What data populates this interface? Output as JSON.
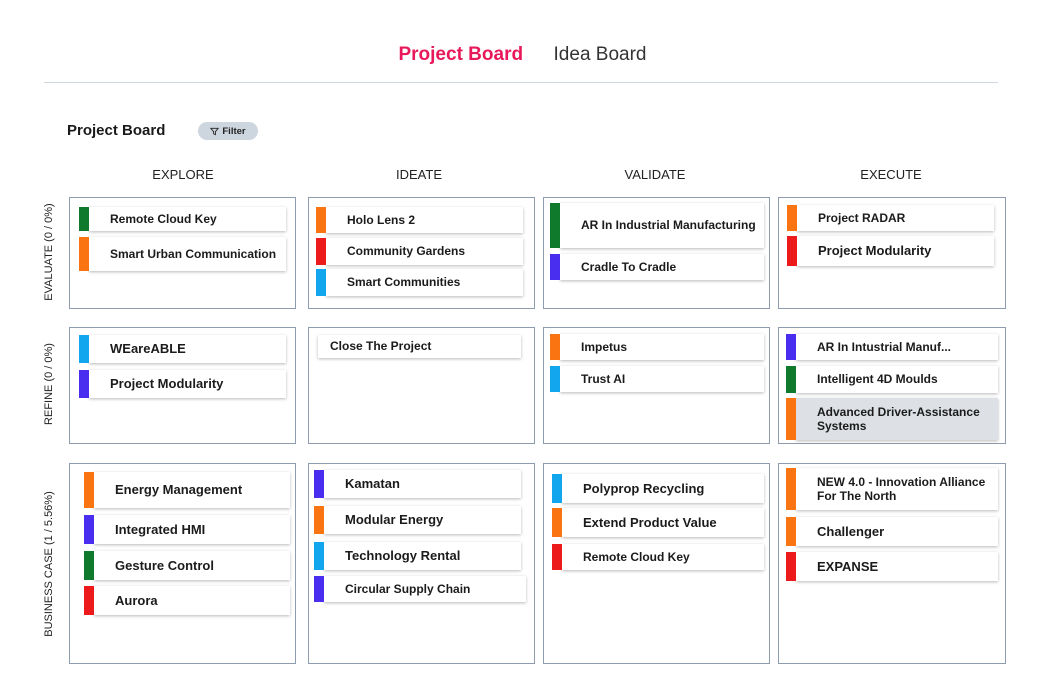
{
  "tabs": {
    "project_board": "Project Board",
    "idea_board": "Idea Board"
  },
  "board": {
    "title": "Project Board",
    "filter_label": "Filter"
  },
  "columns": [
    "EXPLORE",
    "IDEATE",
    "VALIDATE",
    "EXECUTE"
  ],
  "rows": [
    "EVALUATE (0 / 0%)",
    "REFINE (0 / 0%)",
    "BUSINESS CASE (1 / 5.56%)"
  ],
  "colors": {
    "accent": "#e8195a",
    "green": "#0f7a2c",
    "orange": "#fb7412",
    "red": "#ec1a1a",
    "purple": "#4a2ef0",
    "blue": "#12a6ee"
  },
  "cards": [
    {
      "label": "Remote Cloud Key",
      "color": "#0f7a2c"
    },
    {
      "label": "Smart Urban Communication",
      "color": "#fb7412"
    },
    {
      "label": "Holo Lens 2",
      "color": "#fb7412"
    },
    {
      "label": "Community Gardens",
      "color": "#ec1a1a"
    },
    {
      "label": "Smart Communities",
      "color": "#12a6ee"
    },
    {
      "label": "AR In Industrial Manufacturing",
      "color": "#0f7a2c"
    },
    {
      "label": "Cradle To Cradle",
      "color": "#4a2ef0"
    },
    {
      "label": "Project RADAR",
      "color": "#fb7412"
    },
    {
      "label": "Project Modularity",
      "color": "#ec1a1a"
    },
    {
      "label": "WEareABLE",
      "color": "#12a6ee"
    },
    {
      "label": "Project Modularity",
      "color": "#4a2ef0"
    },
    {
      "label": "Close The Project",
      "color": ""
    },
    {
      "label": "Impetus",
      "color": "#fb7412"
    },
    {
      "label": "Trust AI",
      "color": "#12a6ee"
    },
    {
      "label": "AR In Intustrial Manuf...",
      "color": "#4a2ef0"
    },
    {
      "label": "Intelligent 4D Moulds",
      "color": "#0f7a2c"
    },
    {
      "label": "Advanced Driver-Assistance Systems",
      "color": "#fb7412"
    },
    {
      "label": "Energy Management",
      "color": "#fb7412"
    },
    {
      "label": "Integrated HMI",
      "color": "#4a2ef0"
    },
    {
      "label": "Gesture Control",
      "color": "#0f7a2c"
    },
    {
      "label": "Aurora",
      "color": "#ec1a1a"
    },
    {
      "label": "Kamatan",
      "color": "#4a2ef0"
    },
    {
      "label": "Modular Energy",
      "color": "#fb7412"
    },
    {
      "label": "Technology Rental",
      "color": "#12a6ee"
    },
    {
      "label": "Circular Supply Chain",
      "color": "#4a2ef0"
    },
    {
      "label": "Polyprop Recycling",
      "color": "#12a6ee"
    },
    {
      "label": "Extend Product Value",
      "color": "#fb7412"
    },
    {
      "label": "Remote Cloud Key",
      "color": "#ec1a1a"
    },
    {
      "label": "NEW 4.0 - Innovation Alliance For The North",
      "color": "#fb7412"
    },
    {
      "label": "Challenger",
      "color": "#fb7412"
    },
    {
      "label": "EXPANSE",
      "color": "#ec1a1a"
    }
  ]
}
